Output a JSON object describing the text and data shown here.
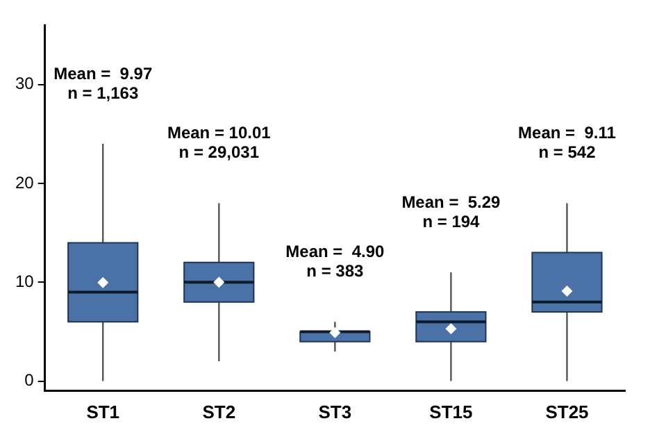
{
  "chart_data": {
    "type": "box",
    "categories": [
      "ST1",
      "ST2",
      "ST3",
      "ST15",
      "ST25"
    ],
    "color": "#4a72a6",
    "boxes": [
      {
        "low": 0,
        "q1": 6,
        "median": 9,
        "q3": 14,
        "high": 24,
        "mean": 9.97
      },
      {
        "low": 2,
        "q1": 8,
        "median": 10,
        "q3": 12,
        "high": 18,
        "mean": 10.01
      },
      {
        "low": 3,
        "q1": 4,
        "median": 5,
        "q3": 5,
        "high": 6,
        "mean": 4.9
      },
      {
        "low": 0,
        "q1": 4,
        "median": 6,
        "q3": 7,
        "high": 11,
        "mean": 5.29
      },
      {
        "low": 0,
        "q1": 7,
        "median": 8,
        "q3": 13,
        "high": 18,
        "mean": 9.11
      }
    ],
    "ylim": [
      -1,
      36
    ],
    "yticks": [
      0,
      10,
      20,
      30
    ],
    "grid": false,
    "legend": false,
    "marker": "diamond",
    "annotations": [
      "Mean =  9.97\nn = 1,163",
      "Mean = 10.01\nn = 29,031",
      "Mean =  4.90\nn = 383",
      "Mean =  5.29\nn = 194",
      "Mean =  9.11\nn = 542"
    ]
  }
}
